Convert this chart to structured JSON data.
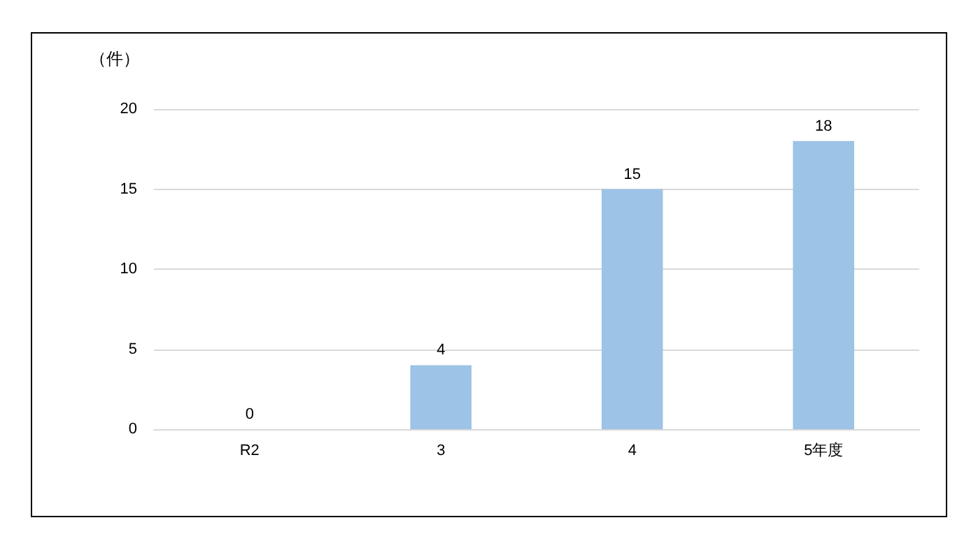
{
  "chart_data": {
    "type": "bar",
    "ylabel": "（件）",
    "categories": [
      "R2",
      "3",
      "4",
      "5年度"
    ],
    "values": [
      0,
      4,
      15,
      18
    ],
    "color": "#9dc3e6",
    "ylim": [
      0,
      20
    ],
    "yticks": [
      0,
      5,
      10,
      15,
      20
    ],
    "grid": "y",
    "data_labels": true
  }
}
